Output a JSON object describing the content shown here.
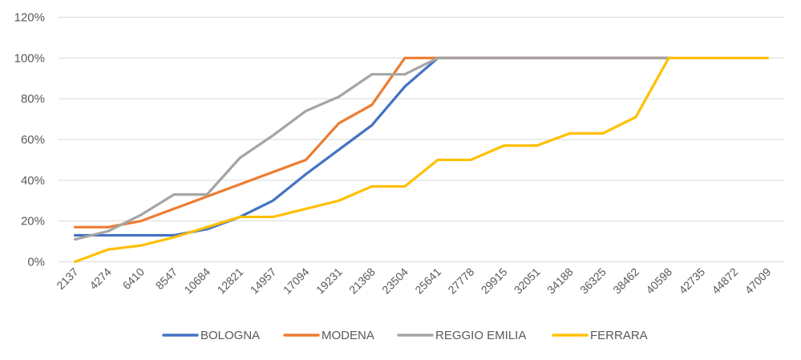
{
  "chart_data": {
    "type": "line",
    "title": "",
    "xlabel": "",
    "ylabel": "",
    "x": [
      "2137",
      "4274",
      "6410",
      "8547",
      "10684",
      "12821",
      "14957",
      "17094",
      "19231",
      "21368",
      "23504",
      "25641",
      "27778",
      "29915",
      "32051",
      "34188",
      "36325",
      "38462",
      "40598",
      "42735",
      "44872",
      "47009"
    ],
    "yticks": [
      "0%",
      "20%",
      "40%",
      "60%",
      "80%",
      "100%",
      "120%"
    ],
    "ylim": [
      0,
      120
    ],
    "grid": true,
    "legend_position": "bottom",
    "series": [
      {
        "name": "BOLOGNA",
        "color": "#4472C4",
        "values": [
          13,
          13,
          13,
          13,
          16,
          22,
          30,
          43,
          55,
          67,
          86,
          100,
          100,
          100,
          100,
          100,
          100,
          100,
          100,
          null,
          null,
          null
        ]
      },
      {
        "name": "MODENA",
        "color": "#ED7D31",
        "values": [
          17,
          17,
          20,
          26,
          32,
          38,
          44,
          50,
          68,
          77,
          100,
          100,
          100,
          100,
          100,
          100,
          100,
          100,
          100,
          null,
          null,
          null
        ]
      },
      {
        "name": "REGGIO EMILIA",
        "color": "#A5A5A5",
        "values": [
          11,
          15,
          23,
          33,
          33,
          51,
          62,
          74,
          81,
          92,
          92,
          100,
          100,
          100,
          100,
          100,
          100,
          100,
          100,
          null,
          null,
          null
        ]
      },
      {
        "name": "FERRARA",
        "color": "#FFC000",
        "values": [
          0,
          6,
          8,
          12,
          17,
          22,
          22,
          26,
          30,
          37,
          37,
          50,
          50,
          57,
          57,
          63,
          63,
          71,
          100,
          100,
          100,
          100
        ]
      }
    ]
  }
}
